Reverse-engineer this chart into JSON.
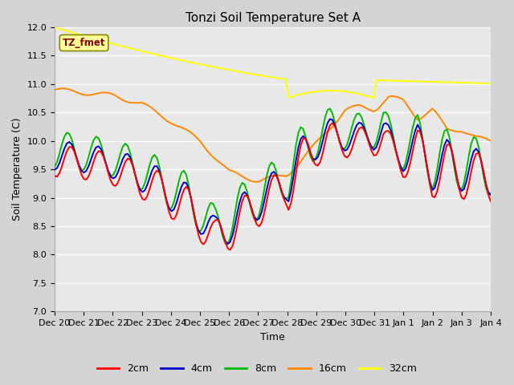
{
  "title": "Tonzi Soil Temperature Set A",
  "xlabel": "Time",
  "ylabel": "Soil Temperature (C)",
  "ylim": [
    7.0,
    12.0
  ],
  "yticks": [
    7.0,
    7.5,
    8.0,
    8.5,
    9.0,
    9.5,
    10.0,
    10.5,
    11.0,
    11.5,
    12.0
  ],
  "colors": {
    "2cm": "#ff0000",
    "4cm": "#0000cc",
    "8cm": "#00bb00",
    "16cm": "#ff8800",
    "32cm": "#ffff00"
  },
  "annotation_label": "TZ_fmet",
  "annotation_box_color": "#ffff99",
  "annotation_text_color": "#880000",
  "annotation_edge_color": "#888800",
  "plot_bg": "#e8e8e8",
  "fig_bg": "#d4d4d4",
  "grid_color": "#ffffff",
  "line_width": 1.4,
  "x_tick_labels": [
    "Dec 20",
    "Dec 21",
    "Dec 22",
    "Dec 23",
    "Dec 24",
    "Dec 25",
    "Dec 26",
    "Dec 27",
    "Dec 28",
    "Dec 29",
    "Dec 30",
    "Dec 31",
    "Jan 1",
    "Jan 2",
    "Jan 3",
    "Jan 4"
  ],
  "legend_labels": [
    "2cm",
    "4cm",
    "8cm",
    "16cm",
    "32cm"
  ]
}
